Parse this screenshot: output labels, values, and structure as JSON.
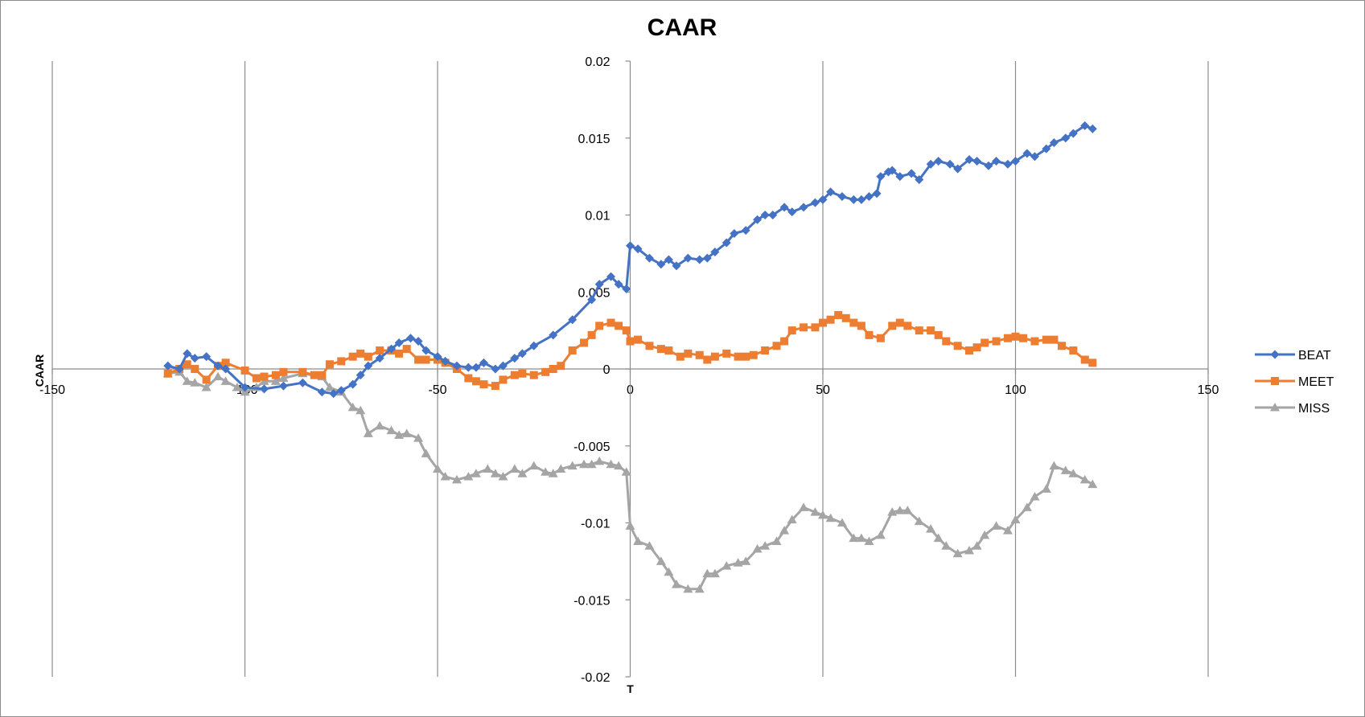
{
  "chart_data": {
    "type": "scatter",
    "title": "CAAR",
    "xlabel": "T",
    "ylabel": "CAAR",
    "xlim": [
      -150,
      150
    ],
    "ylim": [
      -0.02,
      0.02
    ],
    "x_ticks": [
      -150,
      -100,
      -50,
      0,
      50,
      100,
      150
    ],
    "x_tick_labels": [
      "-150",
      "-100",
      "-50",
      "0",
      "50",
      "100",
      "150"
    ],
    "y_ticks": [
      0.02,
      0.015,
      0.01,
      0.005,
      0,
      -0.005,
      -0.01,
      -0.015,
      -0.02
    ],
    "y_tick_labels": [
      "0.02",
      "0.015",
      "0.01",
      "0.005",
      "0",
      "-0.005",
      "-0.01",
      "-0.015",
      "-0.02"
    ],
    "grid": "vertical",
    "legend_position": "right",
    "series": [
      {
        "name": "BEAT",
        "color": "#4472C4",
        "marker": "diamond",
        "x": [
          -120,
          -117,
          -115,
          -113,
          -110,
          -107,
          -105,
          -100,
          -95,
          -90,
          -85,
          -80,
          -77,
          -75,
          -72,
          -70,
          -68,
          -65,
          -62,
          -60,
          -57,
          -55,
          -53,
          -50,
          -48,
          -45,
          -42,
          -40,
          -38,
          -35,
          -33,
          -30,
          -28,
          -25,
          -20,
          -15,
          -10,
          -8,
          -5,
          -3,
          -1,
          0,
          2,
          5,
          8,
          10,
          12,
          15,
          18,
          20,
          22,
          25,
          27,
          30,
          33,
          35,
          37,
          40,
          42,
          45,
          48,
          50,
          52,
          55,
          58,
          60,
          62,
          64,
          65,
          67,
          68,
          70,
          73,
          75,
          78,
          80,
          83,
          85,
          88,
          90,
          93,
          95,
          98,
          100,
          103,
          105,
          108,
          110,
          113,
          115,
          118,
          120
        ],
        "y": [
          0.0002,
          0,
          0.001,
          0.0007,
          0.0008,
          0.0002,
          0,
          -0.0012,
          -0.0013,
          -0.0011,
          -0.0009,
          -0.0015,
          -0.0016,
          -0.0014,
          -0.001,
          -0.0004,
          0.0002,
          0.0007,
          0.0013,
          0.0017,
          0.002,
          0.0018,
          0.0012,
          0.0008,
          0.0005,
          0.0002,
          0.0001,
          0.0001,
          0.0004,
          0,
          0.0002,
          0.0007,
          0.001,
          0.0015,
          0.0022,
          0.0032,
          0.0045,
          0.0055,
          0.006,
          0.0055,
          0.0052,
          0.008,
          0.0078,
          0.0072,
          0.0068,
          0.0071,
          0.0067,
          0.0072,
          0.0071,
          0.0072,
          0.0076,
          0.0082,
          0.0088,
          0.009,
          0.0097,
          0.01,
          0.01,
          0.0105,
          0.0102,
          0.0105,
          0.0108,
          0.011,
          0.0115,
          0.0112,
          0.011,
          0.011,
          0.0112,
          0.0114,
          0.0125,
          0.0128,
          0.0129,
          0.0125,
          0.0127,
          0.0123,
          0.0133,
          0.0135,
          0.0133,
          0.013,
          0.0136,
          0.0135,
          0.0132,
          0.0135,
          0.0133,
          0.0135,
          0.014,
          0.0138,
          0.0143,
          0.0147,
          0.015,
          0.0153,
          0.0158,
          0.0156
        ]
      },
      {
        "name": "MEET",
        "color": "#ED7D31",
        "marker": "square",
        "x": [
          -120,
          -117,
          -115,
          -113,
          -110,
          -107,
          -105,
          -100,
          -97,
          -95,
          -92,
          -90,
          -85,
          -82,
          -80,
          -78,
          -75,
          -72,
          -70,
          -68,
          -65,
          -62,
          -60,
          -58,
          -55,
          -53,
          -50,
          -48,
          -45,
          -42,
          -40,
          -38,
          -35,
          -33,
          -30,
          -28,
          -25,
          -22,
          -20,
          -18,
          -15,
          -12,
          -10,
          -8,
          -5,
          -3,
          -1,
          0,
          2,
          5,
          8,
          10,
          13,
          15,
          18,
          20,
          22,
          25,
          28,
          30,
          32,
          35,
          38,
          40,
          42,
          45,
          48,
          50,
          52,
          54,
          56,
          58,
          60,
          62,
          65,
          68,
          70,
          72,
          75,
          78,
          80,
          82,
          85,
          88,
          90,
          92,
          95,
          98,
          100,
          102,
          105,
          108,
          110,
          112,
          115,
          118,
          120
        ],
        "y": [
          -0.0003,
          0,
          0.0003,
          0,
          -0.0007,
          0.0002,
          0.0004,
          -0.0001,
          -0.0006,
          -0.0005,
          -0.0004,
          -0.0002,
          -0.0002,
          -0.0004,
          -0.0004,
          0.0003,
          0.0005,
          0.0008,
          0.001,
          0.0008,
          0.0012,
          0.0012,
          0.001,
          0.0013,
          0.0006,
          0.0006,
          0.0006,
          0.0004,
          0,
          -0.0006,
          -0.0008,
          -0.001,
          -0.0011,
          -0.0007,
          -0.0004,
          -0.0003,
          -0.0004,
          -0.0002,
          0,
          0.0002,
          0.0012,
          0.0017,
          0.0022,
          0.0028,
          0.003,
          0.0028,
          0.0025,
          0.0018,
          0.0019,
          0.0015,
          0.0013,
          0.0012,
          0.0008,
          0.001,
          0.0009,
          0.0006,
          0.0008,
          0.001,
          0.0008,
          0.0008,
          0.0009,
          0.0012,
          0.0015,
          0.0018,
          0.0025,
          0.0027,
          0.0027,
          0.003,
          0.0032,
          0.0035,
          0.0033,
          0.003,
          0.0028,
          0.0022,
          0.002,
          0.0028,
          0.003,
          0.0028,
          0.0025,
          0.0025,
          0.0022,
          0.0018,
          0.0015,
          0.0012,
          0.0014,
          0.0017,
          0.0018,
          0.002,
          0.0021,
          0.002,
          0.0018,
          0.0019,
          0.0019,
          0.0015,
          0.0012,
          0.0006,
          0.0004
        ]
      },
      {
        "name": "MISS",
        "color": "#A5A5A5",
        "marker": "triangle",
        "x": [
          -120,
          -117,
          -115,
          -113,
          -110,
          -107,
          -105,
          -102,
          -100,
          -97,
          -95,
          -92,
          -90,
          -85,
          -80,
          -78,
          -75,
          -72,
          -70,
          -68,
          -65,
          -62,
          -60,
          -58,
          -55,
          -53,
          -50,
          -48,
          -45,
          -42,
          -40,
          -37,
          -35,
          -33,
          -30,
          -28,
          -25,
          -22,
          -20,
          -18,
          -15,
          -12,
          -10,
          -8,
          -5,
          -3,
          -1,
          0,
          2,
          5,
          8,
          10,
          12,
          15,
          18,
          20,
          22,
          25,
          28,
          30,
          33,
          35,
          38,
          40,
          42,
          45,
          48,
          50,
          52,
          55,
          58,
          60,
          62,
          65,
          68,
          70,
          72,
          75,
          78,
          80,
          82,
          85,
          88,
          90,
          92,
          95,
          98,
          100,
          103,
          105,
          108,
          110,
          113,
          115,
          118,
          120
        ],
        "y": [
          -0.0003,
          -0.0002,
          -0.0008,
          -0.0009,
          -0.0012,
          -0.0005,
          -0.0008,
          -0.0012,
          -0.0015,
          -0.0012,
          -0.0008,
          -0.0008,
          -0.0006,
          -0.0003,
          -0.0005,
          -0.0012,
          -0.0015,
          -0.0025,
          -0.0027,
          -0.0042,
          -0.0037,
          -0.004,
          -0.0043,
          -0.0042,
          -0.0045,
          -0.0055,
          -0.0065,
          -0.007,
          -0.0072,
          -0.007,
          -0.0068,
          -0.0065,
          -0.0068,
          -0.007,
          -0.0065,
          -0.0068,
          -0.0063,
          -0.0067,
          -0.0068,
          -0.0065,
          -0.0063,
          -0.0062,
          -0.0062,
          -0.006,
          -0.0062,
          -0.0063,
          -0.0067,
          -0.0102,
          -0.0112,
          -0.0115,
          -0.0125,
          -0.0132,
          -0.014,
          -0.0143,
          -0.0143,
          -0.0133,
          -0.0133,
          -0.0128,
          -0.0126,
          -0.0125,
          -0.0117,
          -0.0115,
          -0.0112,
          -0.0105,
          -0.0098,
          -0.009,
          -0.0093,
          -0.0095,
          -0.0097,
          -0.01,
          -0.011,
          -0.011,
          -0.0112,
          -0.0108,
          -0.0093,
          -0.0092,
          -0.0092,
          -0.0099,
          -0.0104,
          -0.011,
          -0.0115,
          -0.012,
          -0.0118,
          -0.0115,
          -0.0108,
          -0.0102,
          -0.0105,
          -0.0098,
          -0.009,
          -0.0083,
          -0.0078,
          -0.0063,
          -0.0066,
          -0.0068,
          -0.0072,
          -0.0075
        ]
      }
    ]
  }
}
